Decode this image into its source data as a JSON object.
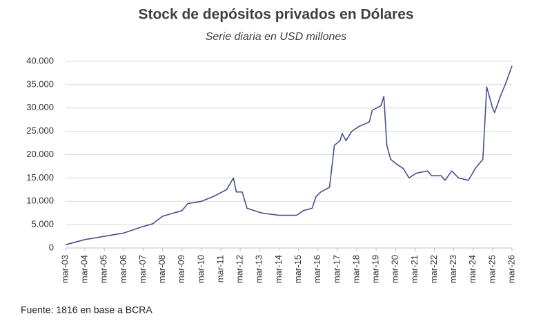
{
  "chart_data": {
    "type": "line",
    "title": "Stock de depósitos privados en Dólares",
    "subtitle": "Serie diaria en USD millones",
    "source": "Fuente: 1816 en base a BCRA",
    "x": [
      2003.0,
      2004.0,
      2005.0,
      2006.0,
      2007.0,
      2007.5,
      2008.0,
      2009.0,
      2009.3,
      2010.0,
      2010.6,
      2011.3,
      2011.65,
      2011.8,
      2012.1,
      2012.35,
      2013.1,
      2014.0,
      2014.9,
      2015.25,
      2015.7,
      2015.9,
      2016.15,
      2016.6,
      2016.85,
      2017.15,
      2017.25,
      2017.45,
      2017.75,
      2018.1,
      2018.65,
      2018.8,
      2019.25,
      2019.4,
      2019.55,
      2019.75,
      2020.05,
      2020.4,
      2020.7,
      2021.05,
      2021.65,
      2021.85,
      2022.35,
      2022.55,
      2022.9,
      2023.25,
      2023.75,
      2023.9,
      2024.1,
      2024.5,
      2024.7,
      2025.0,
      2025.1,
      2025.45,
      2025.65,
      2026.0
    ],
    "series": [
      {
        "name": "Stock de depósitos",
        "color": "#44508a",
        "values": [
          700,
          1800,
          2500,
          3200,
          4600,
          5200,
          6800,
          8000,
          9500,
          10000,
          11000,
          12500,
          15000,
          12000,
          12000,
          8500,
          7500,
          7000,
          7000,
          8000,
          8500,
          11000,
          12000,
          13000,
          22000,
          23000,
          24500,
          23000,
          25000,
          26000,
          27000,
          29500,
          30500,
          32500,
          22000,
          19000,
          18000,
          17000,
          15000,
          16000,
          16500,
          15500,
          15500,
          14500,
          16500,
          15000,
          14500,
          15500,
          17000,
          19000,
          34500,
          30000,
          29000,
          33000,
          35000,
          39000
        ]
      }
    ],
    "xlim": [
      2003,
      2026
    ],
    "xticks": [
      {
        "value": 2003,
        "label": "mar-03"
      },
      {
        "value": 2004,
        "label": "mar-04"
      },
      {
        "value": 2005,
        "label": "mar-05"
      },
      {
        "value": 2006,
        "label": "mar-06"
      },
      {
        "value": 2007,
        "label": "mar-07"
      },
      {
        "value": 2008,
        "label": "mar-08"
      },
      {
        "value": 2009,
        "label": "mar-09"
      },
      {
        "value": 2010,
        "label": "mar-10"
      },
      {
        "value": 2011,
        "label": "mar-11"
      },
      {
        "value": 2012,
        "label": "mar-12"
      },
      {
        "value": 2013,
        "label": "mar-13"
      },
      {
        "value": 2014,
        "label": "mar-14"
      },
      {
        "value": 2015,
        "label": "mar-15"
      },
      {
        "value": 2016,
        "label": "mar-16"
      },
      {
        "value": 2017,
        "label": "mar-17"
      },
      {
        "value": 2018,
        "label": "mar-18"
      },
      {
        "value": 2019,
        "label": "mar-19"
      },
      {
        "value": 2020,
        "label": "mar-20"
      },
      {
        "value": 2021,
        "label": "mar-21"
      },
      {
        "value": 2022,
        "label": "mar-22"
      },
      {
        "value": 2023,
        "label": "mar-23"
      },
      {
        "value": 2024,
        "label": "mar-24"
      },
      {
        "value": 2025,
        "label": "mar-25"
      },
      {
        "value": 2026,
        "label": "mar-26"
      }
    ],
    "ylim": [
      0,
      40000
    ],
    "yticks": [
      0,
      {
        "value": 5000,
        "label": "5.000"
      },
      {
        "value": 10000,
        "label": "10.000"
      },
      {
        "value": 15000,
        "label": "15.000"
      },
      {
        "value": 20000,
        "label": "20.000"
      },
      {
        "value": 25000,
        "label": "25.000"
      },
      {
        "value": 30000,
        "label": "30.000"
      },
      {
        "value": 35000,
        "label": "35.000"
      },
      {
        "value": 40000,
        "label": "40.000"
      }
    ],
    "grid": true
  }
}
